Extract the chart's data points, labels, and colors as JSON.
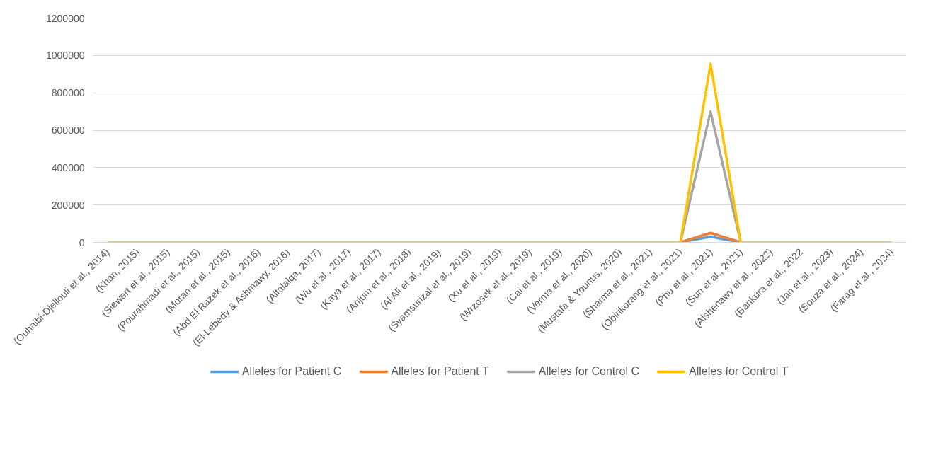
{
  "chart_data": {
    "type": "line",
    "categories": [
      "(Ouhaibi-Djellouli et al., 2014)",
      "(Khan, 2015)",
      "(Siewert et al., 2015)",
      "(Pourahmadi et al., 2015)",
      "(Moran et al., 2015)",
      "(Abd El Razek et al., 2016)",
      "(El-Lebedy & Ashmawy, 2016)",
      "(Altalalqa, 2017)",
      "(Wu et al., 2017)",
      "(Kaya et al., 2017)",
      "(Anjum et al., 2018)",
      "(Al Ali et al., 2019)",
      "(Syamsurizal et al., 2019)",
      "(Xu et al., 2019)",
      "(Wrzosek et al., 2019)",
      "(Cai et al., 2019)",
      "(Verma et al., 2020)",
      "(Mustafa & Younus, 2020)",
      "(Sharma et al., 2021)",
      "(Obirikorang et al., 2021)",
      "(Phu et al., 2021)",
      "(Sun et al., 2021)",
      "(Alshenawy et al., 2022)",
      "(Bankura et al., 2022",
      "(Jan et al., 2023)",
      "(Souza et al., 2024)",
      "(Farag et al., 2024)"
    ],
    "series": [
      {
        "name": "Alleles for Patient C",
        "color": "#5b9bd5",
        "values": [
          null,
          null,
          null,
          null,
          null,
          null,
          null,
          null,
          null,
          null,
          null,
          null,
          null,
          null,
          null,
          null,
          null,
          null,
          null,
          0,
          30000,
          0,
          null,
          null,
          null,
          null,
          null
        ]
      },
      {
        "name": "Alleles for Patient T",
        "color": "#ed7d31",
        "values": [
          null,
          null,
          null,
          null,
          null,
          null,
          null,
          null,
          null,
          null,
          null,
          null,
          null,
          null,
          null,
          null,
          null,
          null,
          null,
          0,
          50000,
          0,
          null,
          null,
          null,
          null,
          null
        ]
      },
      {
        "name": "Alleles for Control C",
        "color": "#a5a5a5",
        "values": [
          null,
          null,
          null,
          null,
          null,
          null,
          null,
          null,
          null,
          null,
          null,
          null,
          null,
          null,
          null,
          null,
          null,
          null,
          null,
          0,
          700000,
          0,
          null,
          null,
          null,
          null,
          null
        ]
      },
      {
        "name": "Alleles for Control T",
        "color": "#ffc000",
        "values": [
          0,
          0,
          0,
          0,
          0,
          0,
          0,
          0,
          0,
          0,
          0,
          0,
          0,
          0,
          0,
          0,
          0,
          0,
          0,
          0,
          955000,
          0,
          0,
          0,
          0,
          0,
          0
        ]
      }
    ],
    "ylim": [
      0,
      1200000
    ],
    "yticks": [
      0,
      200000,
      400000,
      600000,
      800000,
      1000000,
      1200000
    ],
    "grid": "y",
    "legend": "bottom",
    "marker": "none",
    "line_style": "solid"
  }
}
